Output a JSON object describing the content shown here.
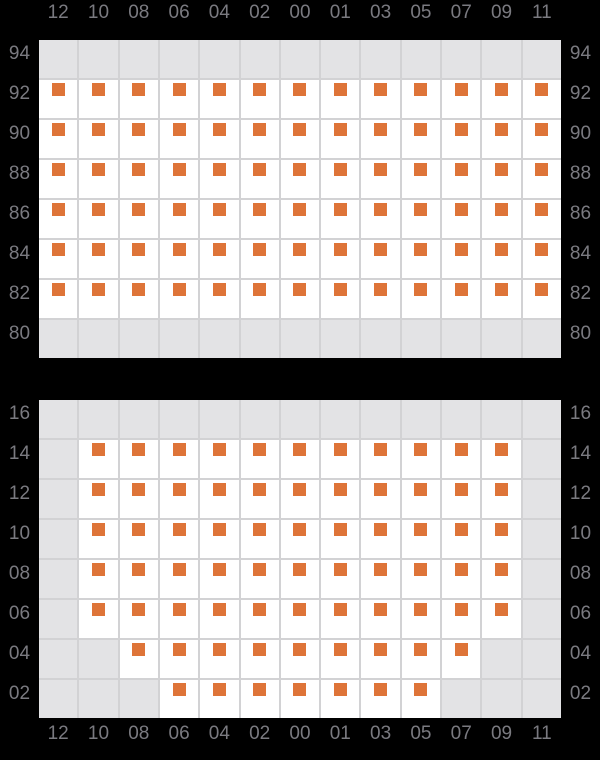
{
  "colors": {
    "background": "#000000",
    "slot_empty": "#e3e3e5",
    "slot_occupied": "#ffffff",
    "grid_line": "#d2d2d4",
    "marker": "#de7438",
    "label_text": "#7a7a80"
  },
  "column_labels": [
    "12",
    "10",
    "08",
    "06",
    "04",
    "02",
    "00",
    "01",
    "03",
    "05",
    "07",
    "09",
    "11"
  ],
  "above_deck": {
    "row_labels": [
      "94",
      "92",
      "90",
      "88",
      "86",
      "84",
      "82",
      "80"
    ],
    "occupancy": [
      "0000000000000",
      "1111111111111",
      "1111111111111",
      "1111111111111",
      "1111111111111",
      "1111111111111",
      "1111111111111",
      "0000000000000"
    ]
  },
  "below_deck": {
    "row_labels": [
      "16",
      "14",
      "12",
      "10",
      "08",
      "06",
      "04",
      "02"
    ],
    "occupancy": [
      "0000000000000",
      "0111111111110",
      "0111111111110",
      "0111111111110",
      "0111111111110",
      "0111111111110",
      "0011111111100",
      "0001111111000"
    ]
  }
}
